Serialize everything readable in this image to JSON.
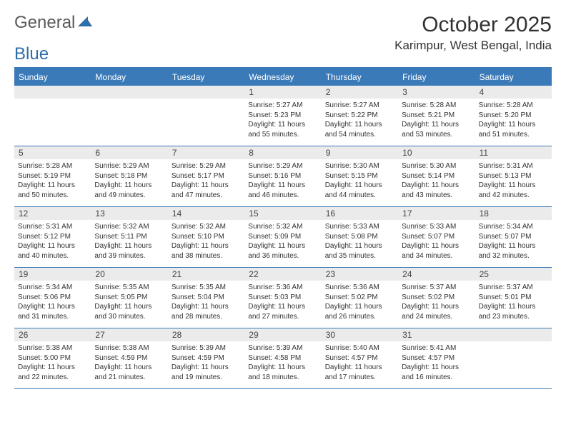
{
  "logo": {
    "text1": "General",
    "text2": "Blue",
    "color1": "#6a6a6a",
    "color2": "#2f6fa8"
  },
  "title": "October 2025",
  "location": "Karimpur, West Bengal, India",
  "colors": {
    "header_bg": "#3a7ab8",
    "daynum_bg": "#ebebeb",
    "border": "#3a7ab8",
    "text": "#333333"
  },
  "day_names": [
    "Sunday",
    "Monday",
    "Tuesday",
    "Wednesday",
    "Thursday",
    "Friday",
    "Saturday"
  ],
  "weeks": [
    [
      {
        "n": "",
        "sr": "",
        "ss": "",
        "dl": ""
      },
      {
        "n": "",
        "sr": "",
        "ss": "",
        "dl": ""
      },
      {
        "n": "",
        "sr": "",
        "ss": "",
        "dl": ""
      },
      {
        "n": "1",
        "sr": "Sunrise: 5:27 AM",
        "ss": "Sunset: 5:23 PM",
        "dl": "Daylight: 11 hours and 55 minutes."
      },
      {
        "n": "2",
        "sr": "Sunrise: 5:27 AM",
        "ss": "Sunset: 5:22 PM",
        "dl": "Daylight: 11 hours and 54 minutes."
      },
      {
        "n": "3",
        "sr": "Sunrise: 5:28 AM",
        "ss": "Sunset: 5:21 PM",
        "dl": "Daylight: 11 hours and 53 minutes."
      },
      {
        "n": "4",
        "sr": "Sunrise: 5:28 AM",
        "ss": "Sunset: 5:20 PM",
        "dl": "Daylight: 11 hours and 51 minutes."
      }
    ],
    [
      {
        "n": "5",
        "sr": "Sunrise: 5:28 AM",
        "ss": "Sunset: 5:19 PM",
        "dl": "Daylight: 11 hours and 50 minutes."
      },
      {
        "n": "6",
        "sr": "Sunrise: 5:29 AM",
        "ss": "Sunset: 5:18 PM",
        "dl": "Daylight: 11 hours and 49 minutes."
      },
      {
        "n": "7",
        "sr": "Sunrise: 5:29 AM",
        "ss": "Sunset: 5:17 PM",
        "dl": "Daylight: 11 hours and 47 minutes."
      },
      {
        "n": "8",
        "sr": "Sunrise: 5:29 AM",
        "ss": "Sunset: 5:16 PM",
        "dl": "Daylight: 11 hours and 46 minutes."
      },
      {
        "n": "9",
        "sr": "Sunrise: 5:30 AM",
        "ss": "Sunset: 5:15 PM",
        "dl": "Daylight: 11 hours and 44 minutes."
      },
      {
        "n": "10",
        "sr": "Sunrise: 5:30 AM",
        "ss": "Sunset: 5:14 PM",
        "dl": "Daylight: 11 hours and 43 minutes."
      },
      {
        "n": "11",
        "sr": "Sunrise: 5:31 AM",
        "ss": "Sunset: 5:13 PM",
        "dl": "Daylight: 11 hours and 42 minutes."
      }
    ],
    [
      {
        "n": "12",
        "sr": "Sunrise: 5:31 AM",
        "ss": "Sunset: 5:12 PM",
        "dl": "Daylight: 11 hours and 40 minutes."
      },
      {
        "n": "13",
        "sr": "Sunrise: 5:32 AM",
        "ss": "Sunset: 5:11 PM",
        "dl": "Daylight: 11 hours and 39 minutes."
      },
      {
        "n": "14",
        "sr": "Sunrise: 5:32 AM",
        "ss": "Sunset: 5:10 PM",
        "dl": "Daylight: 11 hours and 38 minutes."
      },
      {
        "n": "15",
        "sr": "Sunrise: 5:32 AM",
        "ss": "Sunset: 5:09 PM",
        "dl": "Daylight: 11 hours and 36 minutes."
      },
      {
        "n": "16",
        "sr": "Sunrise: 5:33 AM",
        "ss": "Sunset: 5:08 PM",
        "dl": "Daylight: 11 hours and 35 minutes."
      },
      {
        "n": "17",
        "sr": "Sunrise: 5:33 AM",
        "ss": "Sunset: 5:07 PM",
        "dl": "Daylight: 11 hours and 34 minutes."
      },
      {
        "n": "18",
        "sr": "Sunrise: 5:34 AM",
        "ss": "Sunset: 5:07 PM",
        "dl": "Daylight: 11 hours and 32 minutes."
      }
    ],
    [
      {
        "n": "19",
        "sr": "Sunrise: 5:34 AM",
        "ss": "Sunset: 5:06 PM",
        "dl": "Daylight: 11 hours and 31 minutes."
      },
      {
        "n": "20",
        "sr": "Sunrise: 5:35 AM",
        "ss": "Sunset: 5:05 PM",
        "dl": "Daylight: 11 hours and 30 minutes."
      },
      {
        "n": "21",
        "sr": "Sunrise: 5:35 AM",
        "ss": "Sunset: 5:04 PM",
        "dl": "Daylight: 11 hours and 28 minutes."
      },
      {
        "n": "22",
        "sr": "Sunrise: 5:36 AM",
        "ss": "Sunset: 5:03 PM",
        "dl": "Daylight: 11 hours and 27 minutes."
      },
      {
        "n": "23",
        "sr": "Sunrise: 5:36 AM",
        "ss": "Sunset: 5:02 PM",
        "dl": "Daylight: 11 hours and 26 minutes."
      },
      {
        "n": "24",
        "sr": "Sunrise: 5:37 AM",
        "ss": "Sunset: 5:02 PM",
        "dl": "Daylight: 11 hours and 24 minutes."
      },
      {
        "n": "25",
        "sr": "Sunrise: 5:37 AM",
        "ss": "Sunset: 5:01 PM",
        "dl": "Daylight: 11 hours and 23 minutes."
      }
    ],
    [
      {
        "n": "26",
        "sr": "Sunrise: 5:38 AM",
        "ss": "Sunset: 5:00 PM",
        "dl": "Daylight: 11 hours and 22 minutes."
      },
      {
        "n": "27",
        "sr": "Sunrise: 5:38 AM",
        "ss": "Sunset: 4:59 PM",
        "dl": "Daylight: 11 hours and 21 minutes."
      },
      {
        "n": "28",
        "sr": "Sunrise: 5:39 AM",
        "ss": "Sunset: 4:59 PM",
        "dl": "Daylight: 11 hours and 19 minutes."
      },
      {
        "n": "29",
        "sr": "Sunrise: 5:39 AM",
        "ss": "Sunset: 4:58 PM",
        "dl": "Daylight: 11 hours and 18 minutes."
      },
      {
        "n": "30",
        "sr": "Sunrise: 5:40 AM",
        "ss": "Sunset: 4:57 PM",
        "dl": "Daylight: 11 hours and 17 minutes."
      },
      {
        "n": "31",
        "sr": "Sunrise: 5:41 AM",
        "ss": "Sunset: 4:57 PM",
        "dl": "Daylight: 11 hours and 16 minutes."
      },
      {
        "n": "",
        "sr": "",
        "ss": "",
        "dl": ""
      }
    ]
  ]
}
